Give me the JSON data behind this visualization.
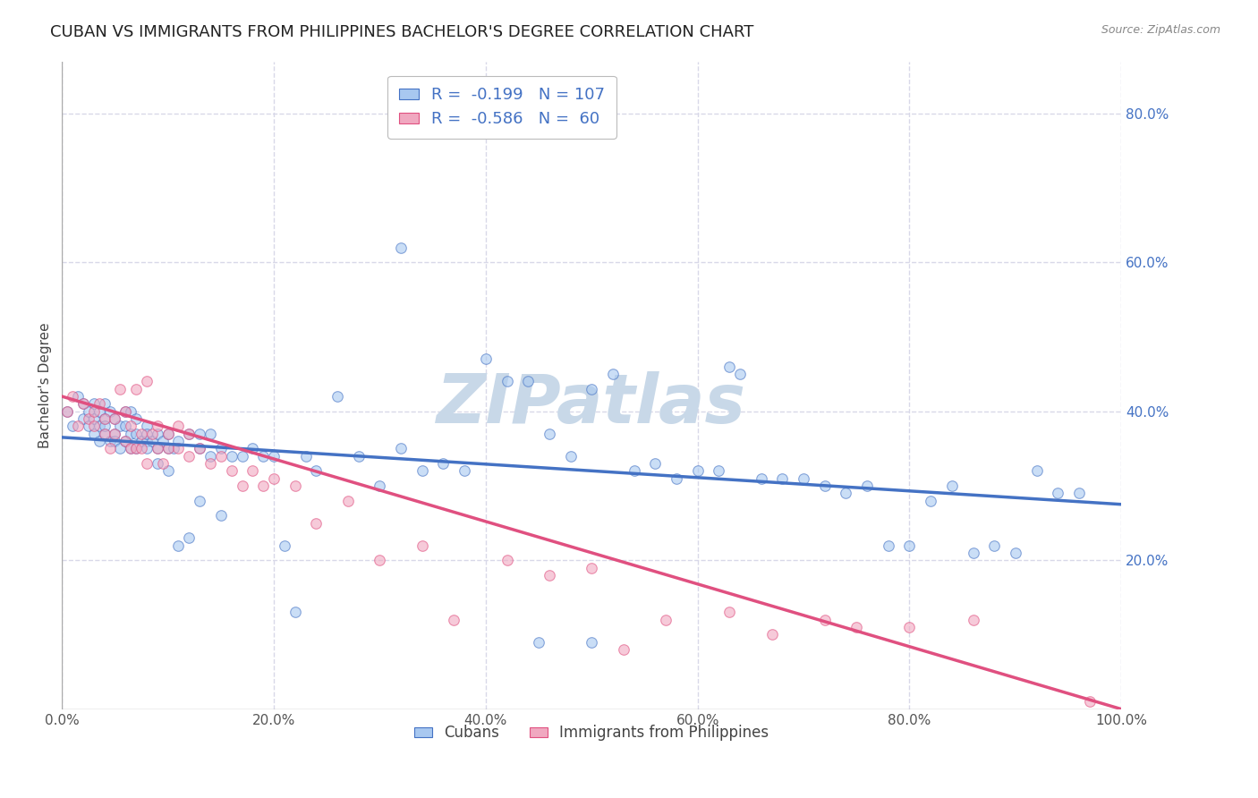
{
  "title": "CUBAN VS IMMIGRANTS FROM PHILIPPINES BACHELOR'S DEGREE CORRELATION CHART",
  "source": "Source: ZipAtlas.com",
  "ylabel": "Bachelor's Degree",
  "xlim": [
    0.0,
    1.0
  ],
  "ylim": [
    0.0,
    0.87
  ],
  "x_ticks": [
    0.0,
    0.2,
    0.4,
    0.6,
    0.8,
    1.0
  ],
  "x_tick_labels": [
    "0.0%",
    "20.0%",
    "40.0%",
    "60.0%",
    "80.0%",
    "100.0%"
  ],
  "y_ticks": [
    0.2,
    0.4,
    0.6,
    0.8
  ],
  "y_tick_labels": [
    "20.0%",
    "40.0%",
    "60.0%",
    "80.0%"
  ],
  "color_blue": "#A8C8F0",
  "color_pink": "#F0A8C0",
  "line_blue": "#4472C4",
  "line_pink": "#E05080",
  "watermark": "ZIPatlas",
  "watermark_color": "#C8D8E8",
  "legend_R1": "-0.199",
  "legend_N1": "107",
  "legend_R2": "-0.586",
  "legend_N2": "60",
  "label1": "Cubans",
  "label2": "Immigrants from Philippines",
  "blue_x": [
    0.005,
    0.01,
    0.015,
    0.02,
    0.02,
    0.025,
    0.025,
    0.03,
    0.03,
    0.03,
    0.035,
    0.035,
    0.035,
    0.04,
    0.04,
    0.04,
    0.04,
    0.045,
    0.045,
    0.05,
    0.05,
    0.05,
    0.055,
    0.055,
    0.06,
    0.06,
    0.06,
    0.065,
    0.065,
    0.065,
    0.07,
    0.07,
    0.07,
    0.075,
    0.08,
    0.08,
    0.08,
    0.08,
    0.085,
    0.09,
    0.09,
    0.09,
    0.095,
    0.1,
    0.1,
    0.1,
    0.105,
    0.11,
    0.11,
    0.12,
    0.12,
    0.13,
    0.13,
    0.13,
    0.14,
    0.14,
    0.15,
    0.15,
    0.16,
    0.17,
    0.18,
    0.19,
    0.2,
    0.21,
    0.22,
    0.23,
    0.24,
    0.26,
    0.28,
    0.3,
    0.32,
    0.34,
    0.36,
    0.38,
    0.4,
    0.42,
    0.44,
    0.46,
    0.48,
    0.5,
    0.52,
    0.54,
    0.56,
    0.58,
    0.6,
    0.62,
    0.64,
    0.66,
    0.68,
    0.7,
    0.72,
    0.74,
    0.76,
    0.78,
    0.8,
    0.82,
    0.84,
    0.86,
    0.88,
    0.9,
    0.92,
    0.94,
    0.96,
    0.32,
    0.45,
    0.5,
    0.63
  ],
  "blue_y": [
    0.4,
    0.38,
    0.42,
    0.39,
    0.41,
    0.38,
    0.4,
    0.37,
    0.39,
    0.41,
    0.36,
    0.38,
    0.4,
    0.37,
    0.39,
    0.41,
    0.38,
    0.36,
    0.4,
    0.37,
    0.39,
    0.36,
    0.35,
    0.38,
    0.36,
    0.38,
    0.4,
    0.35,
    0.37,
    0.4,
    0.35,
    0.37,
    0.39,
    0.36,
    0.36,
    0.38,
    0.35,
    0.37,
    0.36,
    0.33,
    0.35,
    0.37,
    0.36,
    0.32,
    0.35,
    0.37,
    0.35,
    0.22,
    0.36,
    0.23,
    0.37,
    0.28,
    0.35,
    0.37,
    0.34,
    0.37,
    0.26,
    0.35,
    0.34,
    0.34,
    0.35,
    0.34,
    0.34,
    0.22,
    0.13,
    0.34,
    0.32,
    0.42,
    0.34,
    0.3,
    0.35,
    0.32,
    0.33,
    0.32,
    0.47,
    0.44,
    0.44,
    0.37,
    0.34,
    0.43,
    0.45,
    0.32,
    0.33,
    0.31,
    0.32,
    0.32,
    0.45,
    0.31,
    0.31,
    0.31,
    0.3,
    0.29,
    0.3,
    0.22,
    0.22,
    0.28,
    0.3,
    0.21,
    0.22,
    0.21,
    0.32,
    0.29,
    0.29,
    0.62,
    0.09,
    0.09,
    0.46
  ],
  "pink_x": [
    0.005,
    0.01,
    0.015,
    0.02,
    0.025,
    0.03,
    0.03,
    0.035,
    0.04,
    0.04,
    0.045,
    0.05,
    0.05,
    0.055,
    0.06,
    0.06,
    0.065,
    0.065,
    0.07,
    0.07,
    0.075,
    0.075,
    0.08,
    0.08,
    0.085,
    0.09,
    0.09,
    0.095,
    0.1,
    0.1,
    0.11,
    0.11,
    0.12,
    0.12,
    0.13,
    0.14,
    0.15,
    0.16,
    0.17,
    0.18,
    0.19,
    0.2,
    0.22,
    0.24,
    0.27,
    0.3,
    0.34,
    0.37,
    0.42,
    0.46,
    0.5,
    0.53,
    0.57,
    0.63,
    0.67,
    0.72,
    0.75,
    0.8,
    0.86,
    0.97
  ],
  "pink_y": [
    0.4,
    0.42,
    0.38,
    0.41,
    0.39,
    0.38,
    0.4,
    0.41,
    0.37,
    0.39,
    0.35,
    0.37,
    0.39,
    0.43,
    0.36,
    0.4,
    0.35,
    0.38,
    0.35,
    0.43,
    0.35,
    0.37,
    0.33,
    0.44,
    0.37,
    0.35,
    0.38,
    0.33,
    0.35,
    0.37,
    0.35,
    0.38,
    0.34,
    0.37,
    0.35,
    0.33,
    0.34,
    0.32,
    0.3,
    0.32,
    0.3,
    0.31,
    0.3,
    0.25,
    0.28,
    0.2,
    0.22,
    0.12,
    0.2,
    0.18,
    0.19,
    0.08,
    0.12,
    0.13,
    0.1,
    0.12,
    0.11,
    0.11,
    0.12,
    0.01
  ],
  "blue_line_y_start": 0.365,
  "blue_line_y_end": 0.275,
  "pink_line_y_start": 0.42,
  "pink_line_y_end": 0.0,
  "grid_color": "#D8D8E8",
  "bg_color": "#FFFFFF",
  "title_fontsize": 13,
  "axis_label_fontsize": 11,
  "tick_fontsize": 11,
  "marker_size": 70,
  "marker_alpha": 0.6,
  "marker_linewidth": 0.8
}
